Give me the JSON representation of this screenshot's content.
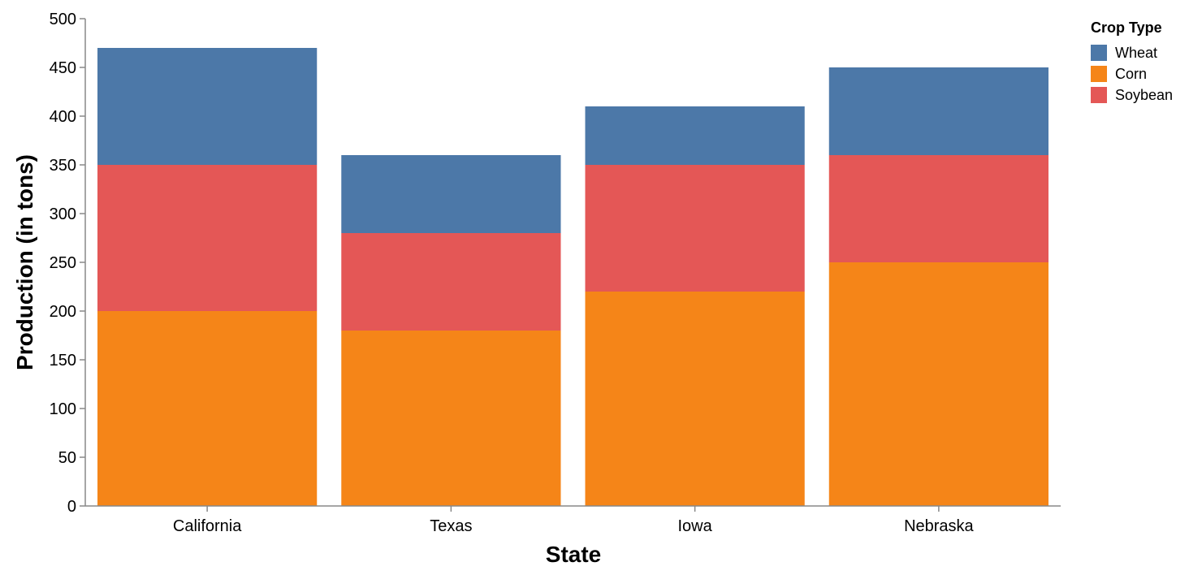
{
  "chart_data": {
    "type": "bar",
    "stacked": true,
    "title": "",
    "xlabel": "State",
    "ylabel": "Production (in tons)",
    "ylim": [
      0,
      500
    ],
    "yticks": [
      0,
      50,
      100,
      150,
      200,
      250,
      300,
      350,
      400,
      450,
      500
    ],
    "categories": [
      "California",
      "Texas",
      "Iowa",
      "Nebraska"
    ],
    "stack_order": [
      "Corn",
      "Soybean",
      "Wheat"
    ],
    "series": [
      {
        "name": "Wheat",
        "color": "#4c78a8",
        "values": [
          120,
          80,
          60,
          90
        ]
      },
      {
        "name": "Corn",
        "color": "#f58518",
        "values": [
          200,
          180,
          220,
          250
        ]
      },
      {
        "name": "Soybean",
        "color": "#e45756",
        "values": [
          150,
          100,
          130,
          110
        ]
      }
    ],
    "grid": false,
    "legend": {
      "title": "Crop Type",
      "placement": "top-right"
    }
  }
}
